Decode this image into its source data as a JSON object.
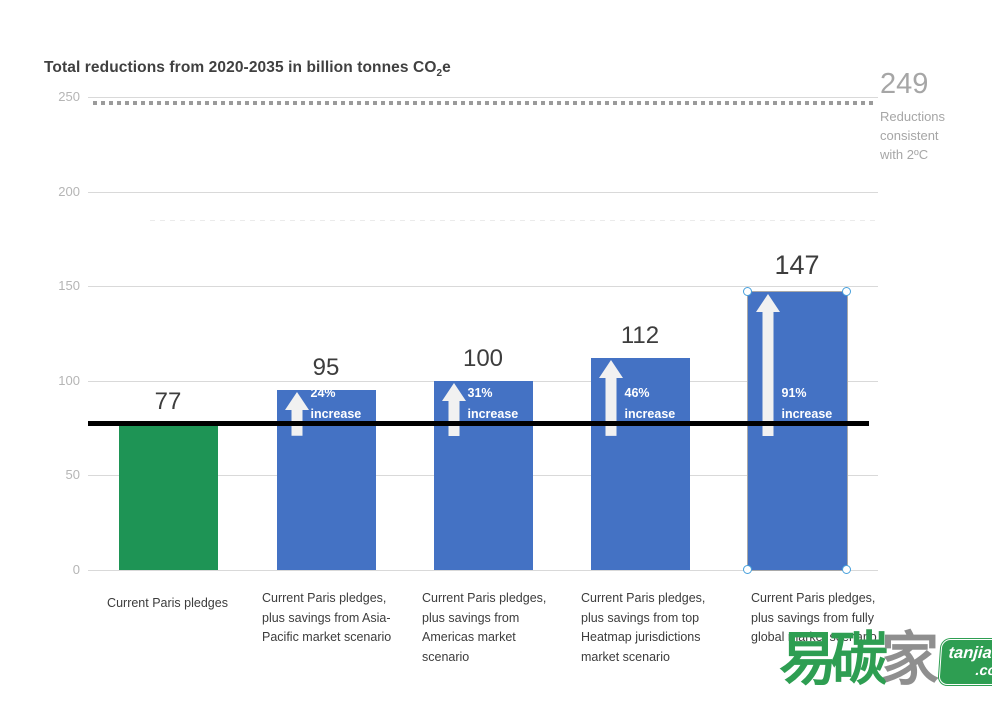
{
  "title": {
    "prefix": "Total reductions from 2020-2035 in billion tonnes CO",
    "subscript": "2",
    "suffix": "e"
  },
  "chart_data": {
    "type": "bar",
    "title": "Total reductions from 2020-2035 in billion tonnes CO2e",
    "ylim": [
      0,
      250
    ],
    "y_ticks": [
      0,
      50,
      100,
      150,
      200,
      250
    ],
    "grid": true,
    "legend": "none",
    "categories": [
      "Current Paris pledges",
      "Current Paris pledges, plus savings from Asia-Pacific market scenario",
      "Current Paris pledges, plus savings from Americas market scenario",
      "Current Paris pledges, plus savings from top Heatmap jurisdictions market scenario",
      "Current Paris pledges, plus savings from fully global market scenario"
    ],
    "values": [
      77,
      95,
      100,
      112,
      147
    ],
    "bars": [
      {
        "value": 77,
        "color": "#1e9455",
        "increase_pct": null,
        "increase_word": null,
        "selected": false
      },
      {
        "value": 95,
        "color": "#4472c4",
        "increase_pct": "24%",
        "increase_word": "increase",
        "selected": false
      },
      {
        "value": 100,
        "color": "#4472c4",
        "increase_pct": "31%",
        "increase_word": "increase",
        "selected": false
      },
      {
        "value": 112,
        "color": "#4472c4",
        "increase_pct": "46%",
        "increase_word": "increase",
        "selected": false
      },
      {
        "value": 147,
        "color": "#4472c4",
        "increase_pct": "91%",
        "increase_word": "increase",
        "selected": true
      }
    ],
    "baseline": {
      "value": 77,
      "color": "#000000"
    },
    "reference_lines": [
      {
        "value": 249,
        "label": "249",
        "description": "Reductions consistent with 2ºC",
        "style": "dotted",
        "color": "#9b9b9b"
      },
      {
        "value": 185,
        "label": "",
        "description": "",
        "style": "faint-dashed",
        "color": "#ebebeb"
      }
    ]
  },
  "watermark": {
    "char1": "易",
    "char2": "碳",
    "char3": "家",
    "site": "tanjiaoyi",
    "tld": ".com"
  }
}
